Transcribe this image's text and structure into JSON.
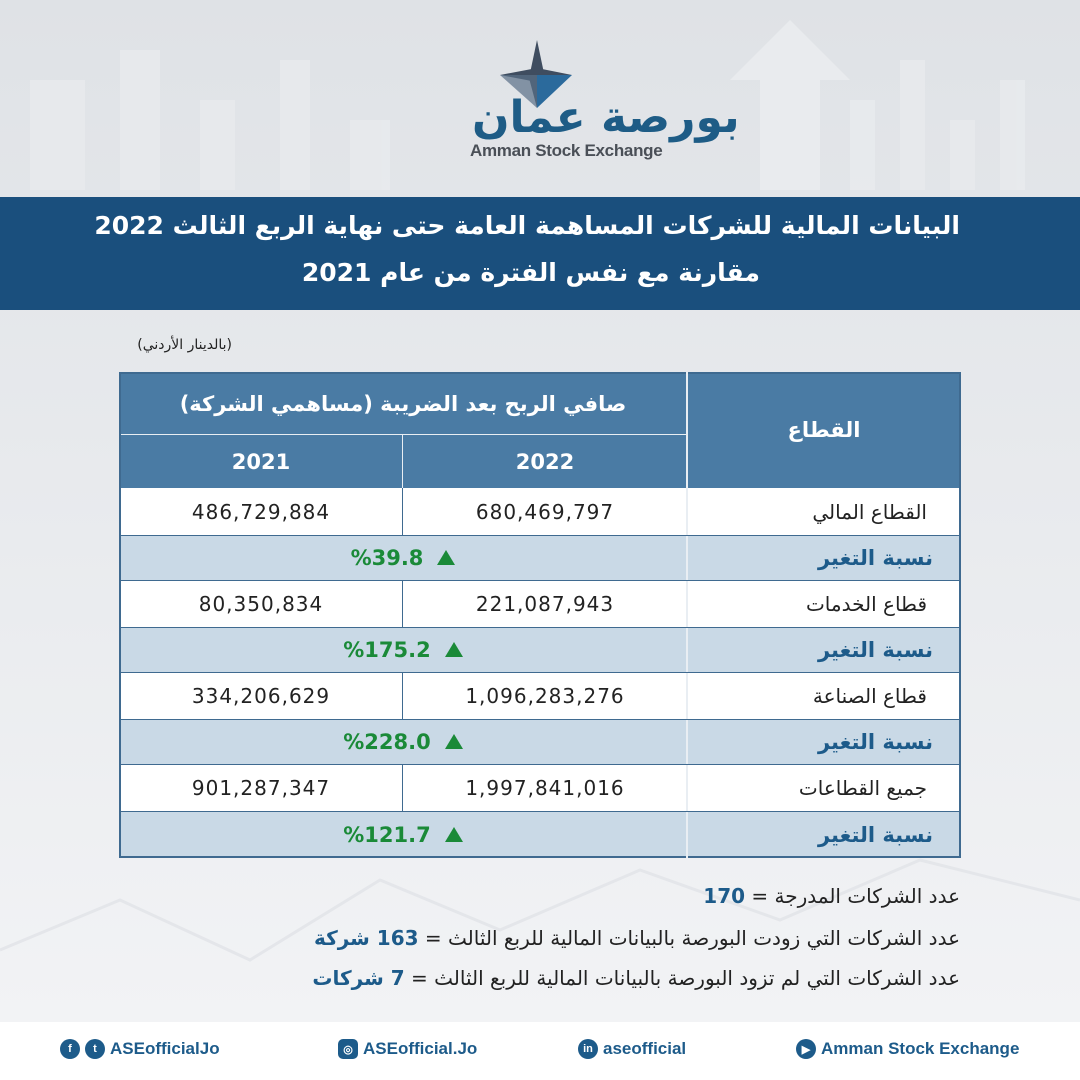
{
  "logo": {
    "arabic": "بورصة عمان",
    "english": "Amman Stock Exchange"
  },
  "banner": {
    "line1": "البيانات المالية للشركات المساهمة العامة حتى نهاية الربع الثالث 2022",
    "line2": "مقارنة مع نفس الفترة من عام 2021"
  },
  "unit_note": "(بالدينار الأردني)",
  "table": {
    "sector_header": "القطاع",
    "profit_header": "صافي الربح بعد الضريبة (مساهمي الشركة)",
    "year_2022": "2022",
    "year_2021": "2021",
    "change_label": "نسبة التغير",
    "rows": [
      {
        "sector": "القطاع المالي",
        "v2022": "680,469,797",
        "v2021": "486,729,884",
        "change": "%39.8"
      },
      {
        "sector": "قطاع الخدمات",
        "v2022": "221,087,943",
        "v2021": "80,350,834",
        "change": "%175.2"
      },
      {
        "sector": "قطاع الصناعة",
        "v2022": "1,096,283,276",
        "v2021": "334,206,629",
        "change": "%228.0"
      },
      {
        "sector": "جميع القطاعات",
        "v2022": "1,997,841,016",
        "v2021": "901,287,347",
        "change": "%121.7"
      }
    ]
  },
  "stats": {
    "listed_label": "عدد الشركات المدرجة =",
    "listed_value": "170",
    "provided_label": "عدد الشركات التي زودت البورصة بالبيانات المالية للربع الثالث  =",
    "provided_value": "163 شركة",
    "not_provided_label": "عدد الشركات التي لم تزود البورصة بالبيانات المالية للربع الثالث  =",
    "not_provided_value": "7 شركات"
  },
  "footer": {
    "facebook_twitter": "ASEofficialJo",
    "instagram": "ASEofficial.Jo",
    "linkedin": "aseofficial",
    "youtube": "Amman Stock Exchange"
  },
  "colors": {
    "navy": "#1a4f7d",
    "header_blue": "#4a7ba4",
    "light_row": "#c9d9e6",
    "green": "#1a8a38"
  }
}
